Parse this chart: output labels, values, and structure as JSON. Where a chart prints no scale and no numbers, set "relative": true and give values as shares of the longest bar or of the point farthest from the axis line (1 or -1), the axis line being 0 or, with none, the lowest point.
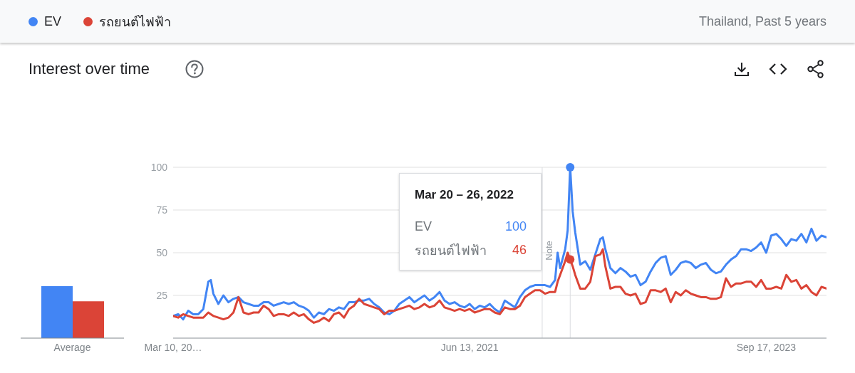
{
  "chart_data": [
    {
      "type": "line",
      "title": "Interest over time",
      "subtitle": "Thailand, Past 5 years",
      "x": [
        "2019-03-10",
        "2019-03-24",
        "2019-04-07",
        "2019-04-21",
        "2019-05-05",
        "2019-05-19",
        "2019-06-02",
        "2019-06-16",
        "2019-06-23",
        "2019-06-30",
        "2019-07-14",
        "2019-07-28",
        "2019-08-11",
        "2019-08-25",
        "2019-09-08",
        "2019-09-22",
        "2019-10-06",
        "2019-10-20",
        "2019-11-03",
        "2019-11-17",
        "2019-12-01",
        "2019-12-15",
        "2019-12-29",
        "2020-01-12",
        "2020-01-26",
        "2020-02-09",
        "2020-02-23",
        "2020-03-08",
        "2020-03-22",
        "2020-04-05",
        "2020-04-19",
        "2020-05-03",
        "2020-05-17",
        "2020-05-31",
        "2020-06-14",
        "2020-06-28",
        "2020-07-12",
        "2020-07-26",
        "2020-08-09",
        "2020-08-23",
        "2020-09-06",
        "2020-09-20",
        "2020-10-04",
        "2020-10-18",
        "2020-11-01",
        "2020-11-15",
        "2020-11-29",
        "2020-12-13",
        "2020-12-27",
        "2021-01-10",
        "2021-01-24",
        "2021-02-07",
        "2021-02-21",
        "2021-03-07",
        "2021-03-21",
        "2021-04-04",
        "2021-04-18",
        "2021-05-02",
        "2021-05-16",
        "2021-05-30",
        "2021-06-13",
        "2021-06-27",
        "2021-07-11",
        "2021-07-25",
        "2021-08-08",
        "2021-08-22",
        "2021-09-05",
        "2021-09-19",
        "2021-10-03",
        "2021-10-17",
        "2021-10-31",
        "2021-11-14",
        "2021-11-28",
        "2021-12-12",
        "2021-12-26",
        "2022-01-09",
        "2022-01-23",
        "2022-02-06",
        "2022-02-13",
        "2022-02-20",
        "2022-03-06",
        "2022-03-13",
        "2022-03-20",
        "2022-03-27",
        "2022-04-03",
        "2022-04-17",
        "2022-05-01",
        "2022-05-15",
        "2022-05-29",
        "2022-06-12",
        "2022-06-19",
        "2022-06-26",
        "2022-07-10",
        "2022-07-24",
        "2022-08-07",
        "2022-08-21",
        "2022-09-04",
        "2022-09-18",
        "2022-10-02",
        "2022-10-16",
        "2022-10-30",
        "2022-11-13",
        "2022-11-27",
        "2022-12-11",
        "2022-12-25",
        "2023-01-08",
        "2023-01-22",
        "2023-02-05",
        "2023-02-19",
        "2023-03-05",
        "2023-03-19",
        "2023-04-02",
        "2023-04-16",
        "2023-04-30",
        "2023-05-14",
        "2023-05-28",
        "2023-06-11",
        "2023-06-25",
        "2023-07-09",
        "2023-07-23",
        "2023-08-06",
        "2023-08-20",
        "2023-09-03",
        "2023-09-17",
        "2023-10-01",
        "2023-10-15",
        "2023-10-29",
        "2023-11-12",
        "2023-11-26",
        "2023-12-10",
        "2023-12-24",
        "2024-01-07",
        "2024-01-21",
        "2024-02-04",
        "2024-02-18",
        "2024-03-03"
      ],
      "series": [
        {
          "name": "EV",
          "color": "#4285f4",
          "values": [
            13,
            14,
            11,
            16,
            14,
            14,
            17,
            33,
            34,
            26,
            20,
            25,
            21,
            23,
            24,
            21,
            20,
            19,
            19,
            21,
            21,
            19,
            20,
            21,
            20,
            21,
            19,
            18,
            16,
            12,
            15,
            14,
            17,
            16,
            18,
            17,
            21,
            21,
            22,
            22,
            23,
            20,
            18,
            15,
            14,
            16,
            20,
            22,
            24,
            21,
            23,
            25,
            22,
            24,
            27,
            22,
            20,
            21,
            19,
            18,
            20,
            17,
            19,
            18,
            20,
            17,
            15,
            22,
            20,
            18,
            24,
            28,
            30,
            31,
            31,
            31,
            30,
            34,
            50,
            41,
            52,
            63,
            100,
            74,
            62,
            43,
            45,
            40,
            49,
            58,
            59,
            52,
            41,
            38,
            41,
            39,
            36,
            37,
            31,
            33,
            39,
            44,
            47,
            48,
            37,
            40,
            44,
            45,
            44,
            41,
            43,
            44,
            40,
            38,
            39,
            43,
            46,
            48,
            52,
            52,
            51,
            53,
            56,
            50,
            60,
            61,
            58,
            54,
            58,
            57,
            61,
            56,
            64,
            57,
            60,
            59
          ]
        },
        {
          "name": "รถยนต์ไฟฟ้า",
          "color": "#db4437",
          "values": [
            13,
            12,
            14,
            13,
            12,
            12,
            12,
            15,
            14,
            13,
            12,
            11,
            12,
            15,
            24,
            15,
            14,
            15,
            15,
            19,
            17,
            13,
            14,
            14,
            13,
            15,
            13,
            14,
            11,
            9,
            10,
            12,
            10,
            14,
            15,
            12,
            17,
            19,
            23,
            20,
            19,
            18,
            17,
            14,
            16,
            16,
            17,
            18,
            19,
            17,
            18,
            20,
            18,
            19,
            22,
            18,
            17,
            16,
            17,
            16,
            17,
            15,
            16,
            17,
            17,
            15,
            14,
            18,
            17,
            17,
            19,
            24,
            26,
            28,
            28,
            26,
            27,
            27,
            33,
            37,
            45,
            50,
            46,
            42,
            37,
            29,
            29,
            33,
            48,
            49,
            52,
            42,
            29,
            30,
            30,
            26,
            25,
            26,
            20,
            21,
            28,
            28,
            27,
            29,
            21,
            27,
            25,
            28,
            26,
            25,
            24,
            24,
            23,
            23,
            24,
            35,
            30,
            32,
            32,
            33,
            33,
            30,
            34,
            29,
            29,
            30,
            29,
            37,
            33,
            34,
            29,
            31,
            27,
            25,
            30,
            29
          ]
        }
      ],
      "xlim": [
        "2019-03-10",
        "2024-03-03"
      ],
      "xticks": [
        {
          "value": "2019-03-10",
          "label": "Mar 10, 20…"
        },
        {
          "value": "2021-06-13",
          "label": "Jun 13, 2021"
        },
        {
          "value": "2023-09-17",
          "label": "Sep 17, 2023"
        }
      ],
      "ylim": [
        0,
        100
      ],
      "yticks": [
        25,
        50,
        75,
        100
      ],
      "grid": "y",
      "legend": "top left",
      "ref_lines": [
        {
          "axis": "x",
          "value": "2022-01-01",
          "label": "Note",
          "color": "#dadce0"
        },
        {
          "axis": "x",
          "value": "2022-03-20",
          "color": "#dadce0"
        }
      ],
      "annotations": [
        "Mar 20 – 26, 2022",
        "100",
        "46"
      ]
    },
    {
      "type": "bar",
      "categories": [
        "Average"
      ],
      "relative": true,
      "series": [
        {
          "color": "#4285f4",
          "values": [
            1
          ]
        },
        {
          "color": "#db4437",
          "values": [
            0.71
          ]
        }
      ]
    }
  ]
}
